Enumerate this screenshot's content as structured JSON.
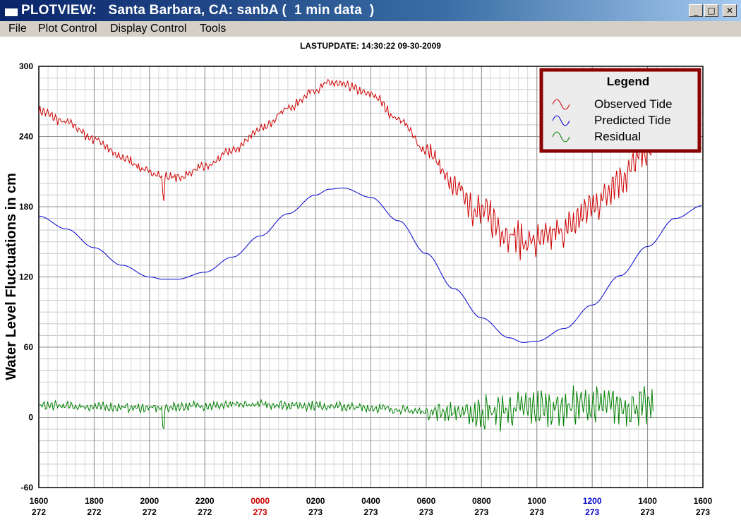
{
  "window": {
    "title": "PLOTVIEW:   Santa Barbara, CA: sanbA (  1 min data  )"
  },
  "window_buttons": {
    "minimize": "_",
    "maximize": "□",
    "close": "✕"
  },
  "menu": {
    "items": [
      "File",
      "Plot Control",
      "Display Control",
      "Tools"
    ]
  },
  "last_update": "LASTUPDATE: 14:30:22  09-30-2009",
  "colors": {
    "observed": "#d00000",
    "predicted": "#0000d0",
    "residual": "#008000",
    "legend_border": "#8b0000",
    "day_change_red": "#cc0000",
    "noon_blue": "#0000cc"
  },
  "chart_data": {
    "type": "line",
    "ylabel": "Water Level Fluctuations in cm",
    "ylim": [
      -60,
      300
    ],
    "yticks": [
      -60,
      0,
      60,
      120,
      180,
      240,
      300
    ],
    "xlim": [
      0,
      24
    ],
    "xticks": [
      {
        "time": "1600",
        "day": "272",
        "color": "black"
      },
      {
        "time": "1800",
        "day": "272",
        "color": "black"
      },
      {
        "time": "2000",
        "day": "272",
        "color": "black"
      },
      {
        "time": "2200",
        "day": "272",
        "color": "black"
      },
      {
        "time": "0000",
        "day": "273",
        "color": "red"
      },
      {
        "time": "0200",
        "day": "273",
        "color": "black"
      },
      {
        "time": "0400",
        "day": "273",
        "color": "black"
      },
      {
        "time": "0600",
        "day": "273",
        "color": "black"
      },
      {
        "time": "0800",
        "day": "273",
        "color": "black"
      },
      {
        "time": "1000",
        "day": "273",
        "color": "black"
      },
      {
        "time": "1200",
        "day": "273",
        "color": "blue"
      },
      {
        "time": "1400",
        "day": "273",
        "color": "black"
      },
      {
        "time": "1600",
        "day": "273",
        "color": "black"
      }
    ],
    "grid": true,
    "legend": {
      "title": "Legend",
      "placement": "top-right",
      "entries": [
        "Observed Tide",
        "Predicted Tide",
        "Residual"
      ]
    },
    "series": [
      {
        "name": "Predicted Tide",
        "x": [
          0,
          1,
          2,
          3,
          4,
          4.5,
          5,
          6,
          7,
          8,
          9,
          10,
          10.5,
          11,
          12,
          13,
          14,
          15,
          16,
          17,
          17.5,
          18,
          19,
          20,
          21,
          22,
          23,
          24
        ],
        "y": [
          172,
          161,
          145,
          130,
          120,
          118,
          118,
          124,
          137,
          155,
          174,
          190,
          195,
          196,
          188,
          168,
          140,
          110,
          85,
          68,
          64,
          65,
          76,
          96,
          121,
          146,
          170,
          181
        ]
      },
      {
        "name": "Observed Tide",
        "x": [
          0,
          1,
          2,
          3,
          4,
          4.5,
          5,
          6,
          7,
          8,
          9,
          10,
          10.5,
          11,
          12,
          13,
          14,
          15,
          16,
          17,
          17.5,
          18,
          19,
          20,
          21,
          22,
          23,
          24
        ],
        "y": [
          262,
          252,
          238,
          222,
          210,
          206,
          205,
          214,
          228,
          246,
          264,
          280,
          286,
          284,
          276,
          255,
          228,
          198,
          175,
          157,
          150,
          150,
          160,
          180,
          204,
          228,
          250,
          262
        ]
      },
      {
        "name": "Residual",
        "x": [
          0,
          2,
          4,
          6,
          8,
          10,
          12,
          14,
          16,
          18,
          20,
          22,
          24
        ],
        "y": [
          10,
          9,
          8,
          10,
          11,
          10,
          8,
          5,
          4,
          8,
          10,
          9,
          8
        ]
      }
    ]
  }
}
